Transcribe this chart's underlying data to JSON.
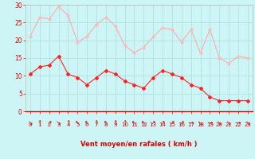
{
  "x": [
    0,
    1,
    2,
    3,
    4,
    5,
    6,
    7,
    8,
    9,
    10,
    11,
    12,
    13,
    14,
    15,
    16,
    17,
    18,
    19,
    20,
    21,
    22,
    23
  ],
  "vent_moyen": [
    10.5,
    12.5,
    13,
    15.5,
    10.5,
    9.5,
    7.5,
    9.5,
    11.5,
    10.5,
    8.5,
    7.5,
    6.5,
    9.5,
    11.5,
    10.5,
    9.5,
    7.5,
    6.5,
    4,
    3,
    3,
    3,
    3
  ],
  "rafales": [
    21,
    26.5,
    26,
    29.5,
    27,
    19.5,
    21,
    24.5,
    26.5,
    24,
    18.5,
    16.5,
    18,
    21,
    23.5,
    23,
    19.5,
    23,
    16.5,
    23,
    15,
    13.5,
    15.5,
    15
  ],
  "line_color_moyen": "#ff2020",
  "line_color_rafales": "#ffaaaa",
  "marker_color_moyen": "#ff2020",
  "marker_color_rafales": "#ffbbbb",
  "bg_color": "#cef5f5",
  "grid_color": "#aadddd",
  "xlabel": "Vent moyen/en rafales ( km/h )",
  "xlabel_color": "#dd0000",
  "tick_color": "#dd0000",
  "ylim": [
    0,
    30
  ],
  "xlim_min": -0.5,
  "xlim_max": 23.5,
  "yticks": [
    0,
    5,
    10,
    15,
    20,
    25,
    30
  ],
  "xticks": [
    0,
    1,
    2,
    3,
    4,
    5,
    6,
    7,
    8,
    9,
    10,
    11,
    12,
    13,
    14,
    15,
    16,
    17,
    18,
    19,
    20,
    21,
    22,
    23
  ],
  "wind_arrows": [
    "↘",
    "↑",
    "↗",
    "↘",
    "↑",
    "↖",
    "↖",
    "↑",
    "↖",
    "↑",
    "↑",
    "↖",
    "↖",
    "↗",
    "↗",
    "↗",
    "↗",
    "→",
    "↘",
    "→",
    "↘",
    "↘",
    "→",
    "↘"
  ]
}
